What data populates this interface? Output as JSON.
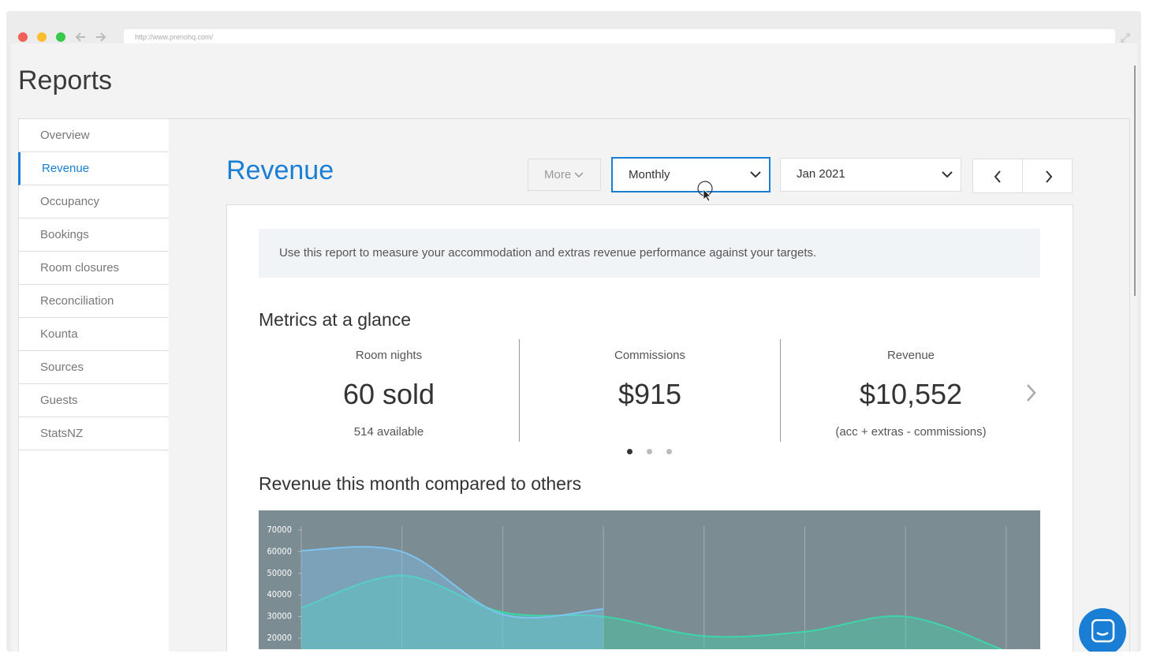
{
  "browser": {
    "url": "http://www.prenohq.com/"
  },
  "page": {
    "title": "Reports"
  },
  "sidebar": {
    "items": [
      "Overview",
      "Revenue",
      "Occupancy",
      "Bookings",
      "Room closures",
      "Reconciliation",
      "Kounta",
      "Sources",
      "Guests",
      "StatsNZ"
    ],
    "active": 1
  },
  "header": {
    "title": "Revenue",
    "more": "More",
    "period": "Monthly",
    "month": "Jan 2021"
  },
  "info": "Use this report to measure your accommodation and extras revenue performance against your targets.",
  "metrics": {
    "title": "Metrics at a glance",
    "items": [
      {
        "label": "Room nights",
        "value": "60 sold",
        "note": "514 available"
      },
      {
        "label": "Commissions",
        "value": "$915"
      },
      {
        "label": "Revenue",
        "value": "$10,552",
        "note": "(acc + extras - commissions)"
      }
    ]
  },
  "chart_section": {
    "title": "Revenue this month compared to others"
  },
  "chart_data": {
    "type": "area",
    "categories": [
      null,
      null,
      null,
      null,
      null,
      null,
      null,
      null
    ],
    "series": [
      {
        "color": "#3dd6a8",
        "values": [
          34000,
          49000,
          32000,
          30000,
          21000,
          23000,
          30000,
          14000
        ]
      },
      {
        "color": "#7cc4ef",
        "values": [
          60500,
          60000,
          31000,
          33500,
          null,
          null,
          null,
          null
        ]
      }
    ],
    "ylim": [
      0,
      70000
    ],
    "yticks": [
      20000,
      30000,
      40000,
      50000,
      60000,
      70000
    ],
    "grid": true
  }
}
